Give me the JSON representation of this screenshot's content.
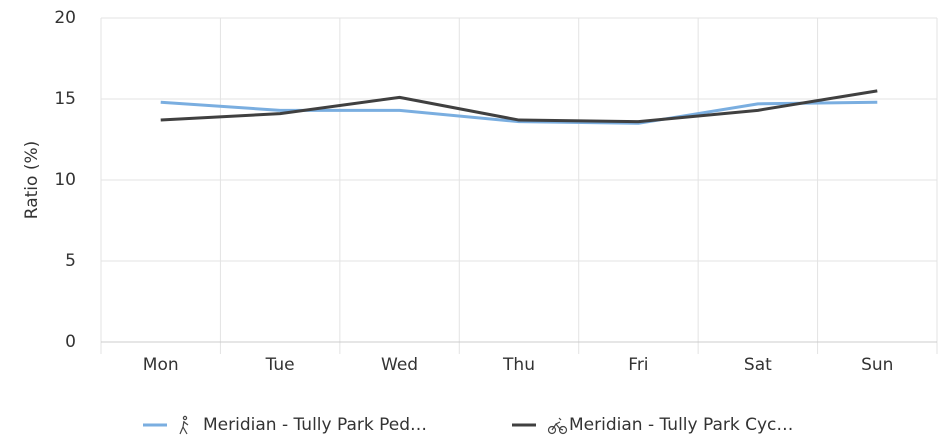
{
  "chart_data": {
    "type": "line",
    "y_label": "Ratio (%)",
    "categories": [
      "Mon",
      "Tue",
      "Wed",
      "Thu",
      "Fri",
      "Sat",
      "Sun"
    ],
    "series": [
      {
        "name": "Meridian - Tully Park Ped…",
        "color": "#7aaee0",
        "values": [
          14.8,
          14.3,
          14.3,
          13.6,
          13.5,
          14.7,
          14.8
        ]
      },
      {
        "name": "Meridian - Tully Park Cyc…",
        "color": "#404040",
        "values": [
          13.7,
          14.1,
          15.1,
          13.7,
          13.6,
          14.3,
          15.5
        ]
      }
    ],
    "ylim": [
      0,
      20
    ],
    "yticks": [
      0,
      5,
      10,
      15,
      20
    ],
    "grid": true,
    "legend": "bottom"
  }
}
